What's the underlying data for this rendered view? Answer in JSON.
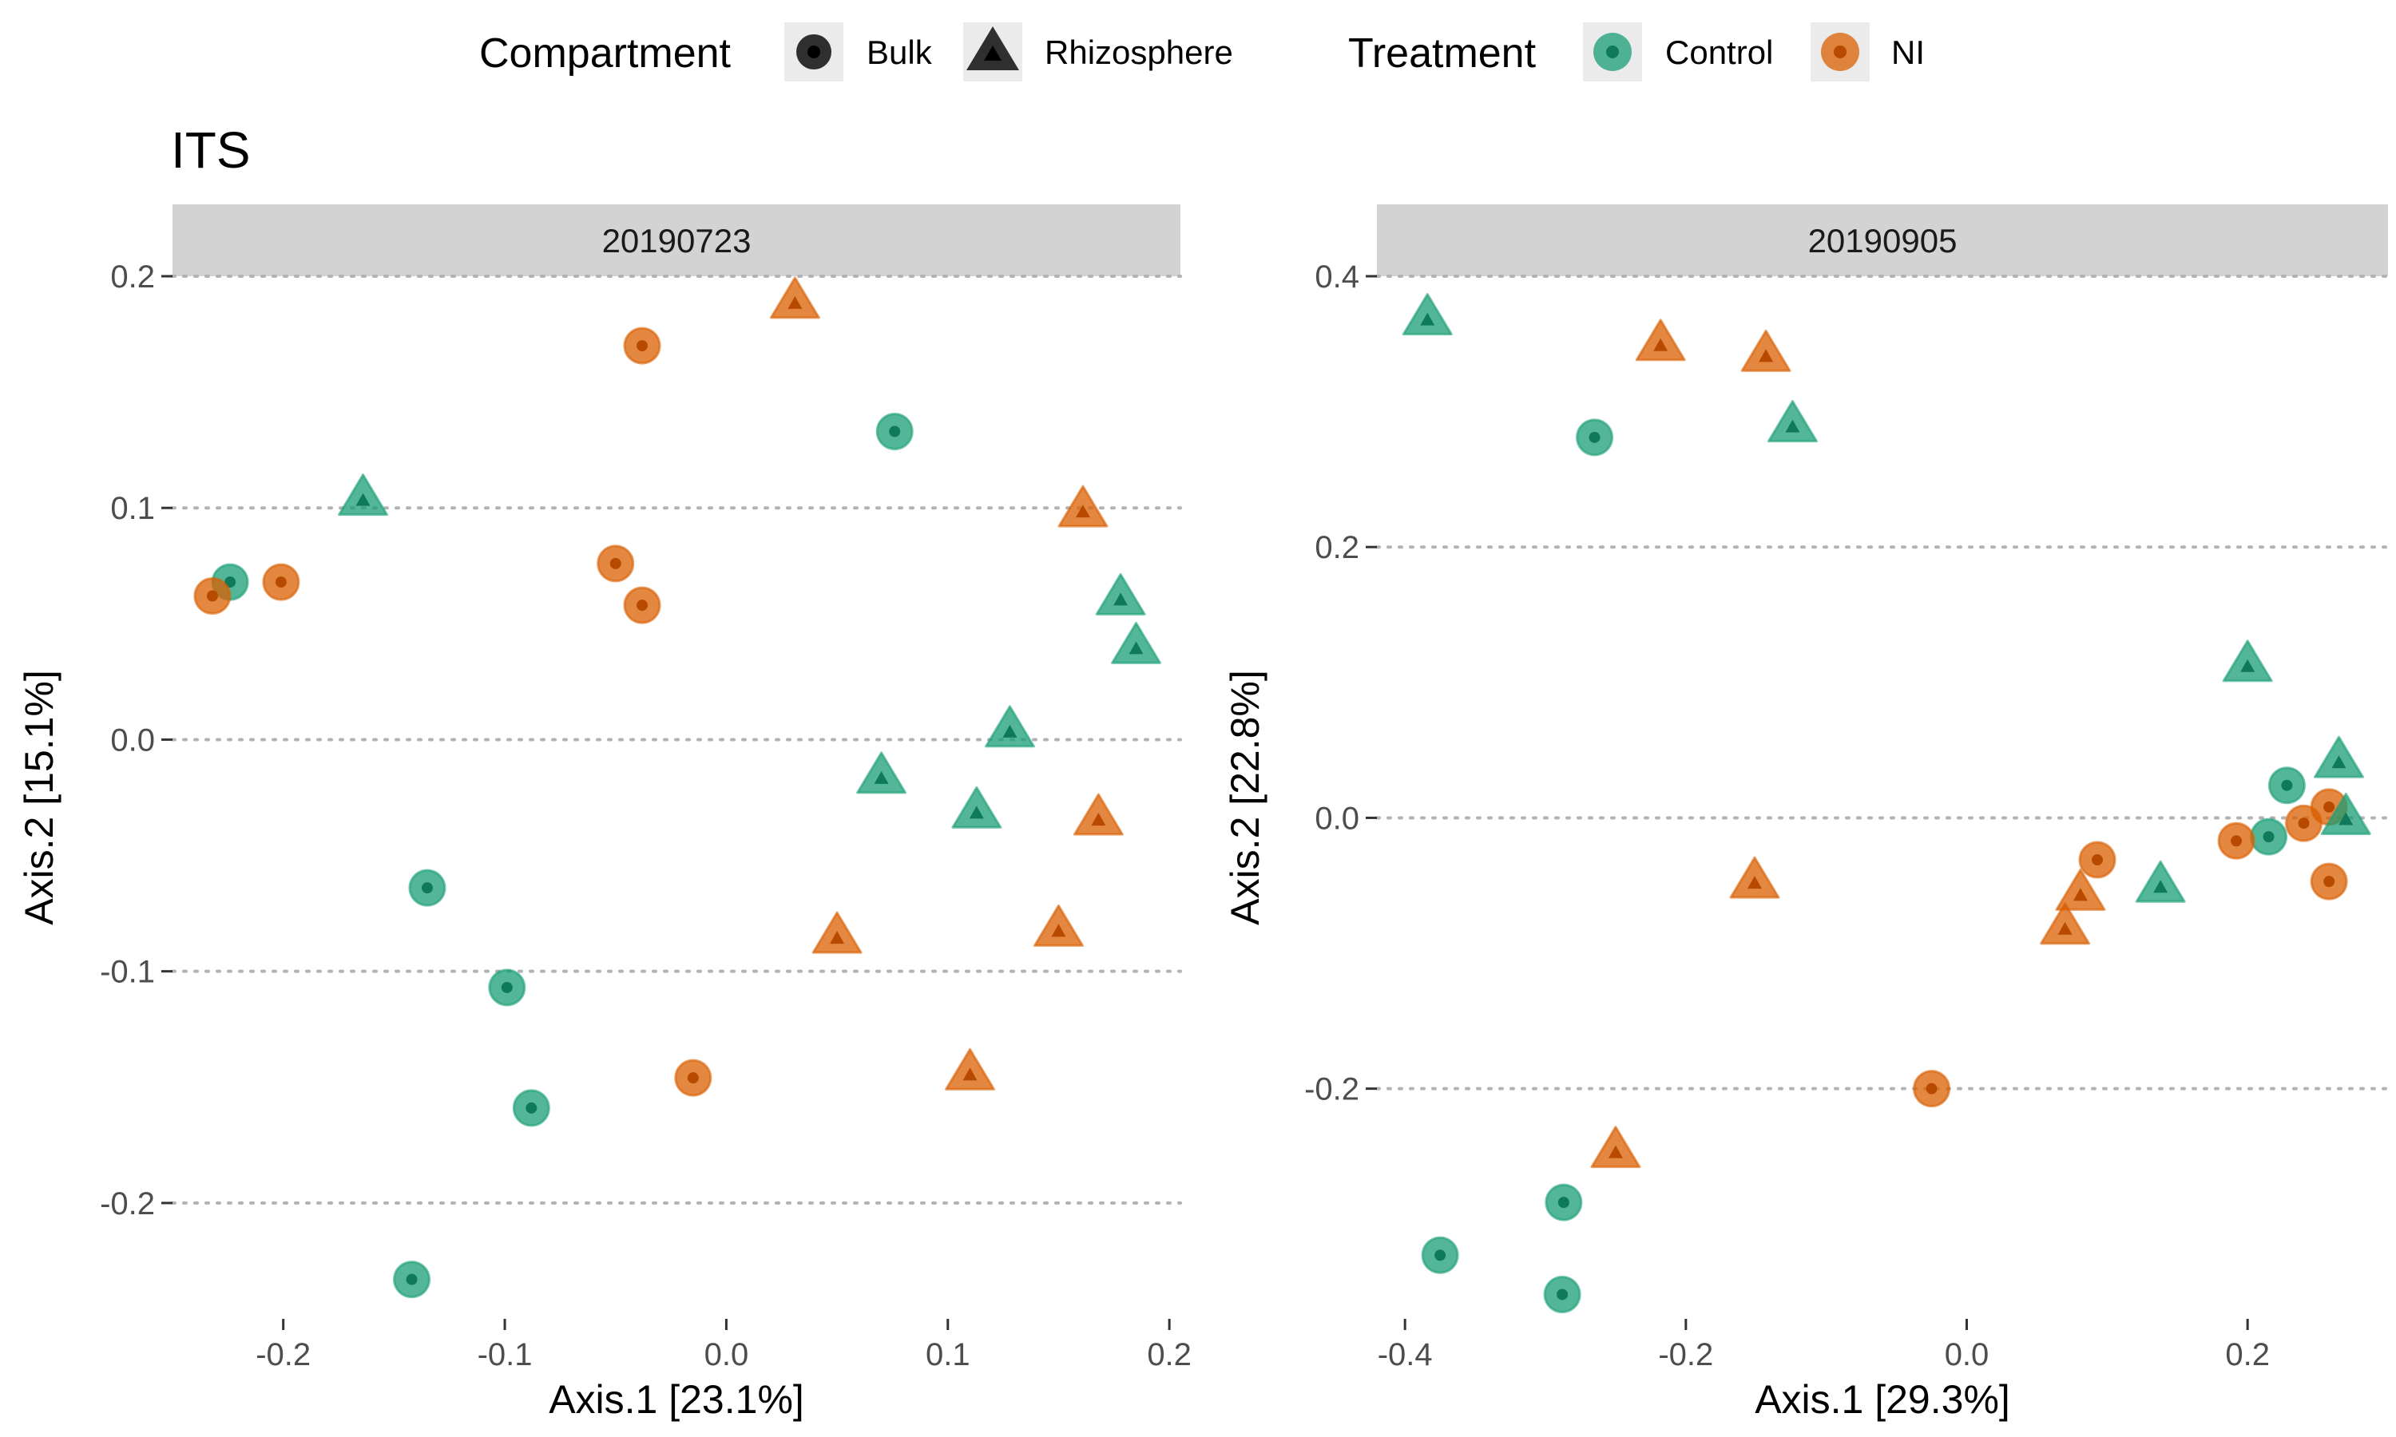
{
  "title": "ITS",
  "legend": {
    "compartment": {
      "title": "Compartment",
      "items": [
        {
          "label": "Bulk",
          "shape": "circle"
        },
        {
          "label": "Rhizosphere",
          "shape": "triangle"
        }
      ]
    },
    "treatment": {
      "title": "Treatment",
      "items": [
        {
          "label": "Control",
          "color": "#1b9e77"
        },
        {
          "label": "NI",
          "color": "#d95f02"
        }
      ]
    }
  },
  "colors": {
    "Control": "#1b9e77",
    "NI": "#d95f02",
    "strip": "#d3d3d3",
    "grid": "#b3b3b3"
  },
  "chart_data": [
    {
      "type": "scatter",
      "panel": "20190723",
      "xlabel": "Axis.1   [23.1%]",
      "ylabel": "Axis.2   [15.1%]",
      "xlim": [
        -0.25,
        0.205
      ],
      "ylim": [
        -0.25,
        0.2
      ],
      "xticks": [
        -0.2,
        -0.1,
        0.0,
        0.1,
        0.2
      ],
      "xtick_labels": [
        "-0.2",
        "-0.1",
        "0.0",
        "0.1",
        "0.2"
      ],
      "yticks": [
        -0.2,
        -0.1,
        0.0,
        0.1,
        0.2
      ],
      "ytick_labels": [
        "-0.2",
        "-0.1",
        "0.0",
        "0.1",
        "0.2"
      ],
      "grid": "horizontal-dotted",
      "points": [
        {
          "x": 0.031,
          "y": 0.189,
          "compartment": "Rhizosphere",
          "treatment": "NI"
        },
        {
          "x": -0.038,
          "y": 0.17,
          "compartment": "Bulk",
          "treatment": "NI"
        },
        {
          "x": 0.076,
          "y": 0.133,
          "compartment": "Bulk",
          "treatment": "Control"
        },
        {
          "x": -0.164,
          "y": 0.104,
          "compartment": "Rhizosphere",
          "treatment": "Control"
        },
        {
          "x": 0.161,
          "y": 0.099,
          "compartment": "Rhizosphere",
          "treatment": "NI"
        },
        {
          "x": -0.224,
          "y": 0.068,
          "compartment": "Bulk",
          "treatment": "Control"
        },
        {
          "x": -0.201,
          "y": 0.068,
          "compartment": "Bulk",
          "treatment": "NI"
        },
        {
          "x": -0.232,
          "y": 0.062,
          "compartment": "Bulk",
          "treatment": "NI"
        },
        {
          "x": -0.05,
          "y": 0.076,
          "compartment": "Bulk",
          "treatment": "NI"
        },
        {
          "x": -0.038,
          "y": 0.058,
          "compartment": "Bulk",
          "treatment": "NI"
        },
        {
          "x": 0.178,
          "y": 0.061,
          "compartment": "Rhizosphere",
          "treatment": "Control"
        },
        {
          "x": 0.185,
          "y": 0.04,
          "compartment": "Rhizosphere",
          "treatment": "Control"
        },
        {
          "x": 0.128,
          "y": 0.004,
          "compartment": "Rhizosphere",
          "treatment": "Control"
        },
        {
          "x": 0.07,
          "y": -0.016,
          "compartment": "Rhizosphere",
          "treatment": "Control"
        },
        {
          "x": 0.113,
          "y": -0.031,
          "compartment": "Rhizosphere",
          "treatment": "Control"
        },
        {
          "x": 0.168,
          "y": -0.034,
          "compartment": "Rhizosphere",
          "treatment": "NI"
        },
        {
          "x": -0.135,
          "y": -0.064,
          "compartment": "Bulk",
          "treatment": "Control"
        },
        {
          "x": 0.05,
          "y": -0.085,
          "compartment": "Rhizosphere",
          "treatment": "NI"
        },
        {
          "x": 0.15,
          "y": -0.082,
          "compartment": "Rhizosphere",
          "treatment": "NI"
        },
        {
          "x": -0.099,
          "y": -0.107,
          "compartment": "Bulk",
          "treatment": "Control"
        },
        {
          "x": -0.015,
          "y": -0.146,
          "compartment": "Bulk",
          "treatment": "NI"
        },
        {
          "x": 0.11,
          "y": -0.144,
          "compartment": "Rhizosphere",
          "treatment": "NI"
        },
        {
          "x": -0.088,
          "y": -0.159,
          "compartment": "Bulk",
          "treatment": "Control"
        },
        {
          "x": -0.142,
          "y": -0.233,
          "compartment": "Bulk",
          "treatment": "Control"
        }
      ]
    },
    {
      "type": "scatter",
      "panel": "20190905",
      "xlabel": "Axis.1   [29.3%]",
      "ylabel": "Axis.2   [22.8%]",
      "xlim": [
        -0.42,
        0.3
      ],
      "ylim": [
        -0.37,
        0.4
      ],
      "xticks": [
        -0.4,
        -0.2,
        0.0,
        0.2
      ],
      "xtick_labels": [
        "-0.4",
        "-0.2",
        "0.0",
        "0.2"
      ],
      "yticks": [
        -0.2,
        0.0,
        0.2,
        0.4
      ],
      "ytick_labels": [
        "-0.2",
        "0.0",
        "0.2",
        "0.4"
      ],
      "grid": "horizontal-dotted",
      "points": [
        {
          "x": -0.384,
          "y": 0.369,
          "compartment": "Rhizosphere",
          "treatment": "Control"
        },
        {
          "x": -0.218,
          "y": 0.35,
          "compartment": "Rhizosphere",
          "treatment": "NI"
        },
        {
          "x": -0.143,
          "y": 0.342,
          "compartment": "Rhizosphere",
          "treatment": "NI"
        },
        {
          "x": -0.265,
          "y": 0.281,
          "compartment": "Bulk",
          "treatment": "Control"
        },
        {
          "x": -0.124,
          "y": 0.29,
          "compartment": "Rhizosphere",
          "treatment": "Control"
        },
        {
          "x": 0.2,
          "y": 0.113,
          "compartment": "Rhizosphere",
          "treatment": "Control"
        },
        {
          "x": 0.265,
          "y": 0.042,
          "compartment": "Rhizosphere",
          "treatment": "Control"
        },
        {
          "x": 0.228,
          "y": 0.024,
          "compartment": "Bulk",
          "treatment": "Control"
        },
        {
          "x": 0.258,
          "y": 0.008,
          "compartment": "Bulk",
          "treatment": "NI"
        },
        {
          "x": 0.27,
          "y": 0.0,
          "compartment": "Rhizosphere",
          "treatment": "Control"
        },
        {
          "x": 0.24,
          "y": -0.004,
          "compartment": "Bulk",
          "treatment": "NI"
        },
        {
          "x": 0.215,
          "y": -0.014,
          "compartment": "Bulk",
          "treatment": "Control"
        },
        {
          "x": 0.192,
          "y": -0.017,
          "compartment": "Bulk",
          "treatment": "NI"
        },
        {
          "x": 0.093,
          "y": -0.031,
          "compartment": "Bulk",
          "treatment": "NI"
        },
        {
          "x": 0.258,
          "y": -0.047,
          "compartment": "Bulk",
          "treatment": "NI"
        },
        {
          "x": 0.138,
          "y": -0.05,
          "compartment": "Rhizosphere",
          "treatment": "Control"
        },
        {
          "x": -0.151,
          "y": -0.047,
          "compartment": "Rhizosphere",
          "treatment": "NI"
        },
        {
          "x": 0.081,
          "y": -0.056,
          "compartment": "Rhizosphere",
          "treatment": "NI"
        },
        {
          "x": 0.07,
          "y": -0.081,
          "compartment": "Rhizosphere",
          "treatment": "NI"
        },
        {
          "x": -0.025,
          "y": -0.2,
          "compartment": "Bulk",
          "treatment": "NI"
        },
        {
          "x": -0.25,
          "y": -0.246,
          "compartment": "Rhizosphere",
          "treatment": "NI"
        },
        {
          "x": -0.287,
          "y": -0.284,
          "compartment": "Bulk",
          "treatment": "Control"
        },
        {
          "x": -0.375,
          "y": -0.323,
          "compartment": "Bulk",
          "treatment": "Control"
        },
        {
          "x": -0.288,
          "y": -0.352,
          "compartment": "Bulk",
          "treatment": "Control"
        }
      ]
    }
  ]
}
